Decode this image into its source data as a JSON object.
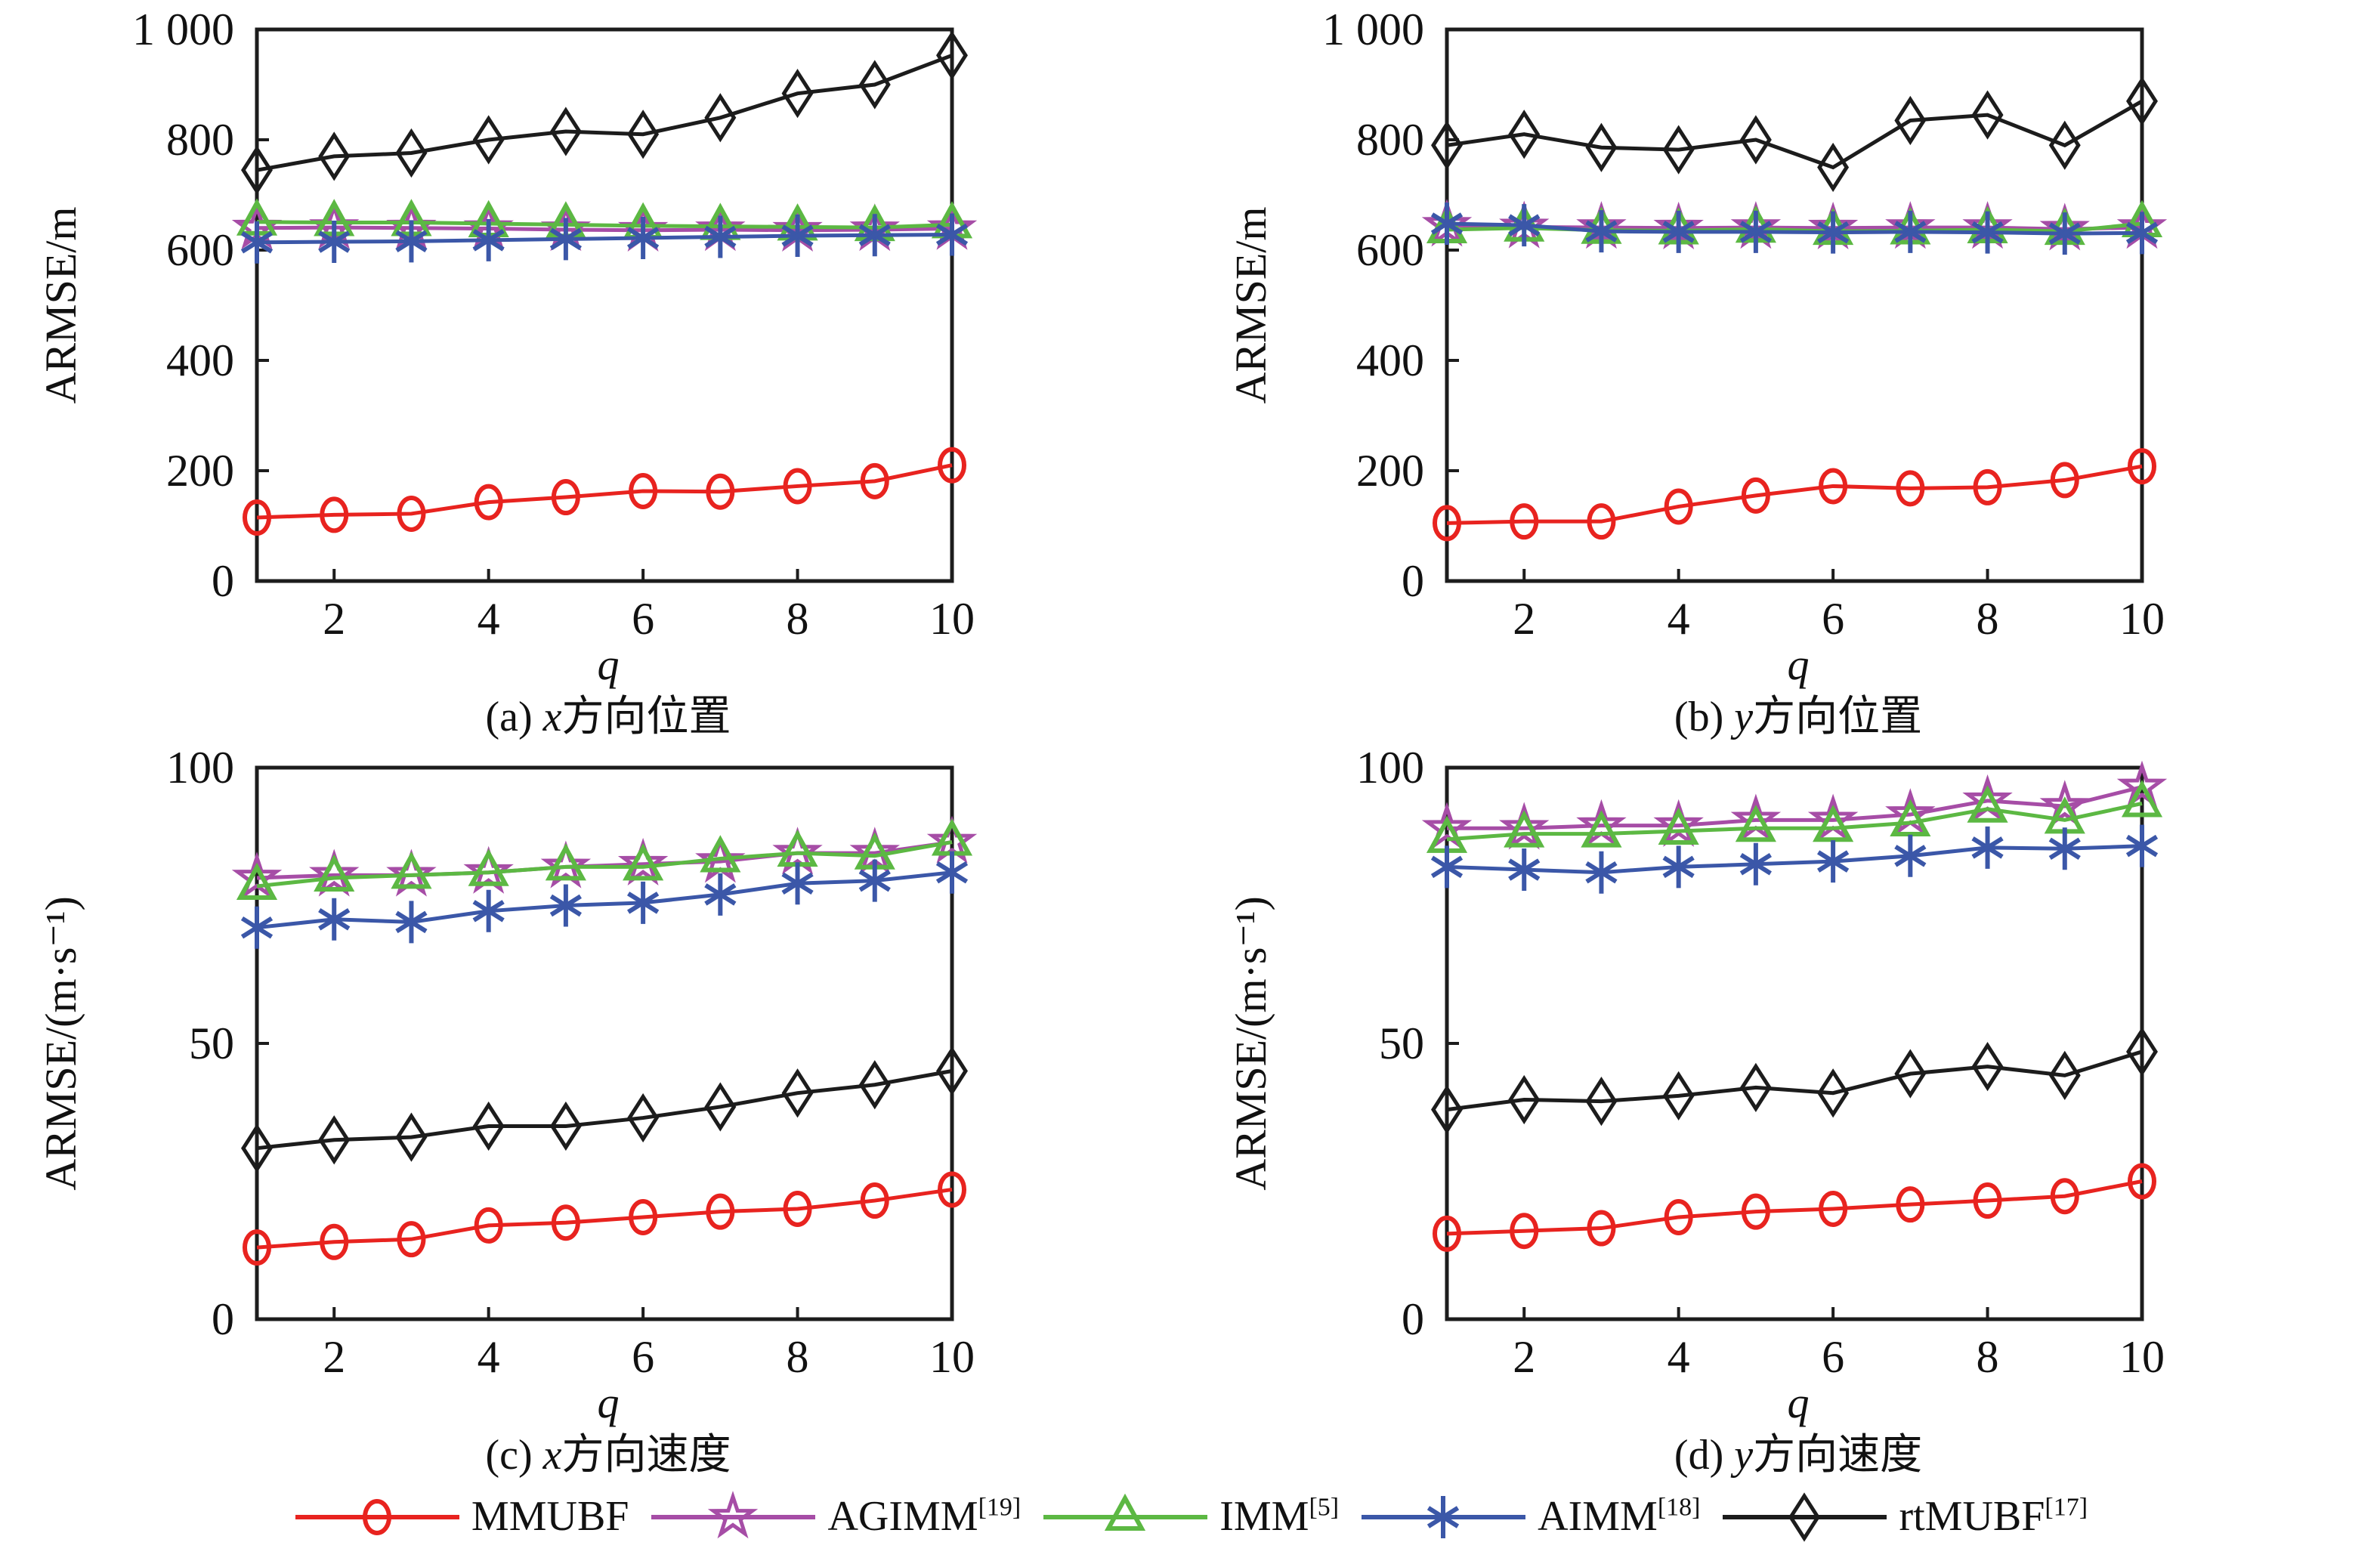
{
  "figure": {
    "x_axis_label": "q",
    "background": "#ffffff",
    "frame_color": "#1c1c1c"
  },
  "colors": {
    "MMUBF": "#e8231f",
    "AGIMM": "#a64da6",
    "IMM": "#5cb843",
    "AIMM": "#3b57a8",
    "rtMUBF": "#1c1c1c"
  },
  "legend": [
    {
      "name": "MMUBF",
      "sup": "",
      "marker": "circle",
      "color": "#e8231f"
    },
    {
      "name": "AGIMM",
      "sup": "[19]",
      "marker": "star",
      "color": "#a64da6"
    },
    {
      "name": "IMM",
      "sup": "[5]",
      "marker": "triangle",
      "color": "#5cb843"
    },
    {
      "name": "AIMM",
      "sup": "[18]",
      "marker": "asterisk",
      "color": "#3b57a8"
    },
    {
      "name": "rtMUBF",
      "sup": "[17]",
      "marker": "diamond",
      "color": "#1c1c1c"
    }
  ],
  "chart_data": [
    {
      "type": "line",
      "title_parts": {
        "prefix": "(a) ",
        "var": "x",
        "suffix": "方向位置"
      },
      "xlabel": "q",
      "ylabel": "ARMSE/m",
      "xlim": [
        1,
        10
      ],
      "ylim": [
        0,
        1000
      ],
      "xticks": [
        2,
        4,
        6,
        8,
        10
      ],
      "yticks": [
        0,
        200,
        400,
        600,
        800,
        1000
      ],
      "ytick_labels": [
        "0",
        "200",
        "400",
        "600",
        "800",
        "1 000"
      ],
      "x": [
        1,
        2,
        3,
        4,
        5,
        6,
        7,
        8,
        9,
        10
      ],
      "series": [
        {
          "name": "MMUBF",
          "marker": "circle",
          "color": "#e8231f",
          "values": [
            115,
            120,
            122,
            143,
            152,
            163,
            162,
            172,
            181,
            210
          ]
        },
        {
          "name": "AGIMM",
          "marker": "star",
          "color": "#a64da6",
          "values": [
            640,
            641,
            640,
            639,
            637,
            636,
            637,
            636,
            637,
            639
          ]
        },
        {
          "name": "IMM",
          "marker": "triangle",
          "color": "#5cb843",
          "values": [
            651,
            650,
            650,
            648,
            646,
            644,
            643,
            642,
            641,
            646
          ]
        },
        {
          "name": "AIMM",
          "marker": "asterisk",
          "color": "#3b57a8",
          "values": [
            614,
            615,
            616,
            618,
            620,
            622,
            624,
            626,
            627,
            628
          ]
        },
        {
          "name": "rtMUBF",
          "marker": "diamond",
          "color": "#1c1c1c",
          "values": [
            745,
            770,
            776,
            800,
            815,
            810,
            840,
            884,
            900,
            953
          ]
        }
      ]
    },
    {
      "type": "line",
      "title_parts": {
        "prefix": "(b) ",
        "var": "y",
        "suffix": "方向位置"
      },
      "xlabel": "q",
      "ylabel": "ARMSE/m",
      "xlim": [
        1,
        10
      ],
      "ylim": [
        0,
        1000
      ],
      "xticks": [
        2,
        4,
        6,
        8,
        10
      ],
      "yticks": [
        0,
        200,
        400,
        600,
        800,
        1000
      ],
      "ytick_labels": [
        "0",
        "200",
        "400",
        "600",
        "800",
        "1 000"
      ],
      "x": [
        1,
        2,
        3,
        4,
        5,
        6,
        7,
        8,
        9,
        10
      ],
      "series": [
        {
          "name": "MMUBF",
          "marker": "circle",
          "color": "#e8231f",
          "values": [
            105,
            108,
            108,
            135,
            155,
            172,
            168,
            170,
            183,
            208
          ]
        },
        {
          "name": "AGIMM",
          "marker": "star",
          "color": "#a64da6",
          "values": [
            645,
            642,
            641,
            640,
            641,
            640,
            641,
            641,
            638,
            641
          ]
        },
        {
          "name": "IMM",
          "marker": "triangle",
          "color": "#5cb843",
          "values": [
            637,
            640,
            636,
            635,
            638,
            634,
            635,
            637,
            634,
            648
          ]
        },
        {
          "name": "AIMM",
          "marker": "asterisk",
          "color": "#3b57a8",
          "values": [
            648,
            645,
            634,
            633,
            633,
            632,
            633,
            632,
            630,
            631
          ]
        },
        {
          "name": "rtMUBF",
          "marker": "diamond",
          "color": "#1c1c1c",
          "values": [
            790,
            810,
            786,
            782,
            800,
            750,
            835,
            845,
            790,
            870
          ]
        }
      ]
    },
    {
      "type": "line",
      "title_parts": {
        "prefix": "(c) ",
        "var": "x",
        "suffix": "方向速度"
      },
      "xlabel": "q",
      "ylabel": "ARMSE/(m·s⁻¹)",
      "xlim": [
        1,
        10
      ],
      "ylim": [
        0,
        100
      ],
      "xticks": [
        2,
        4,
        6,
        8,
        10
      ],
      "yticks": [
        0,
        50,
        100
      ],
      "ytick_labels": [
        "0",
        "50",
        "100"
      ],
      "x": [
        1,
        2,
        3,
        4,
        5,
        6,
        7,
        8,
        9,
        10
      ],
      "series": [
        {
          "name": "MMUBF",
          "marker": "circle",
          "color": "#e8231f",
          "values": [
            13,
            14,
            14.5,
            17,
            17.5,
            18.5,
            19.5,
            20,
            21.5,
            23.5
          ]
        },
        {
          "name": "AGIMM",
          "marker": "star",
          "color": "#a64da6",
          "values": [
            80,
            80.5,
            80.5,
            81,
            82,
            82.5,
            83,
            84.5,
            84.5,
            86.5
          ]
        },
        {
          "name": "IMM",
          "marker": "triangle",
          "color": "#5cb843",
          "values": [
            78.5,
            80,
            80.5,
            81,
            82,
            82,
            83.5,
            84.5,
            84,
            86.5
          ]
        },
        {
          "name": "AIMM",
          "marker": "asterisk",
          "color": "#3b57a8",
          "values": [
            71,
            72.5,
            72,
            74,
            75,
            75.5,
            77,
            79,
            79.5,
            81
          ]
        },
        {
          "name": "rtMUBF",
          "marker": "diamond",
          "color": "#1c1c1c",
          "values": [
            31,
            32.5,
            33,
            35,
            35,
            36.5,
            38.5,
            41,
            42.5,
            45
          ]
        }
      ]
    },
    {
      "type": "line",
      "title_parts": {
        "prefix": "(d) ",
        "var": "y",
        "suffix": "方向速度"
      },
      "xlabel": "q",
      "ylabel": "ARMSE/(m·s⁻¹)",
      "xlim": [
        1,
        10
      ],
      "ylim": [
        0,
        100
      ],
      "xticks": [
        2,
        4,
        6,
        8,
        10
      ],
      "yticks": [
        0,
        50,
        100
      ],
      "ytick_labels": [
        "0",
        "50",
        "100"
      ],
      "x": [
        1,
        2,
        3,
        4,
        5,
        6,
        7,
        8,
        9,
        10
      ],
      "series": [
        {
          "name": "MMUBF",
          "marker": "circle",
          "color": "#e8231f",
          "values": [
            15.5,
            16,
            16.5,
            18.5,
            19.5,
            20,
            20.8,
            21.5,
            22.3,
            25
          ]
        },
        {
          "name": "AGIMM",
          "marker": "star",
          "color": "#a64da6",
          "values": [
            89,
            89,
            89.5,
            89.5,
            90.5,
            90.5,
            91.5,
            94,
            93,
            96.5
          ]
        },
        {
          "name": "IMM",
          "marker": "triangle",
          "color": "#5cb843",
          "values": [
            87,
            88,
            88,
            88.5,
            89,
            89,
            90,
            92.5,
            90.5,
            93.5
          ]
        },
        {
          "name": "AIMM",
          "marker": "asterisk",
          "color": "#3b57a8",
          "values": [
            82,
            81.5,
            81,
            82,
            82.5,
            83,
            84,
            85.5,
            85.3,
            85.8
          ]
        },
        {
          "name": "rtMUBF",
          "marker": "diamond",
          "color": "#1c1c1c",
          "values": [
            38,
            39.8,
            39.5,
            40.5,
            42,
            41,
            44.5,
            45.8,
            44.2,
            48.5
          ]
        }
      ]
    }
  ]
}
